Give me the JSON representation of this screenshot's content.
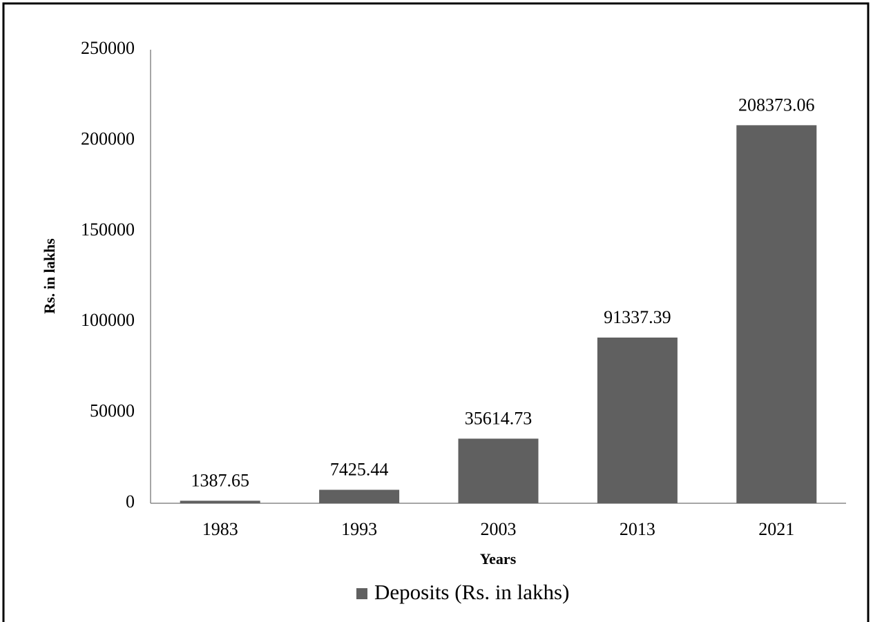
{
  "chart_data": {
    "type": "bar",
    "categories": [
      "1983",
      "1993",
      "2003",
      "2013",
      "2021"
    ],
    "series": [
      {
        "name": "Deposits (Rs. in lakhs)",
        "color": "#606060",
        "values": [
          1387.65,
          7425.44,
          35614.73,
          91337.39,
          208373.06
        ]
      }
    ],
    "ylim": [
      0,
      250000
    ],
    "yticks": [
      0,
      50000,
      100000,
      150000,
      200000,
      250000
    ],
    "y_label": "Rs. in lakhs",
    "x_label": "Years",
    "grid": false,
    "legend": "bottom"
  }
}
